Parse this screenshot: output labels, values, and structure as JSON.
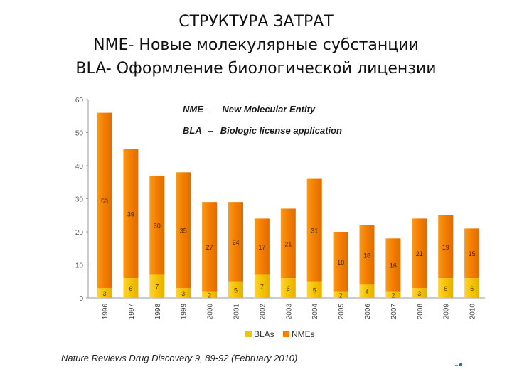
{
  "slide": {
    "title_lines": [
      "СТРУКТУРА ЗАТРАТ",
      "NME- Новые молекулярные субстанции",
      "BLA- Оформление биологической лицензии"
    ],
    "source": "Nature Reviews Drug Discovery 9, 89-92 (February 2010)"
  },
  "chart_data": {
    "type": "bar",
    "stacked": true,
    "categories": [
      "1996",
      "1997",
      "1998",
      "1999",
      "2000",
      "2001",
      "2002",
      "2003",
      "2004",
      "2005",
      "2006",
      "2007",
      "2008",
      "2009",
      "2010"
    ],
    "series": [
      {
        "name": "BLAs",
        "values": [
          3,
          6,
          7,
          3,
          2,
          5,
          7,
          6,
          5,
          2,
          4,
          2,
          3,
          6,
          6
        ],
        "color": "#f5c400"
      },
      {
        "name": "NMEs",
        "values": [
          53,
          39,
          30,
          35,
          27,
          24,
          17,
          21,
          31,
          18,
          18,
          16,
          21,
          19,
          15
        ],
        "color": "#f47f00"
      }
    ],
    "y_ticks": [
      "0",
      "10",
      "20",
      "30",
      "40",
      "50",
      "60"
    ],
    "ylim": [
      0,
      60
    ],
    "annotations": [
      {
        "abbr": "NME",
        "sep": "–",
        "text": "New Molecular Entity"
      },
      {
        "abbr": "BLA",
        "sep": "–",
        "text": "Biologic license application"
      }
    ],
    "legend": {
      "position": "bottom",
      "items": [
        "BLAs",
        "NMEs"
      ]
    },
    "grid": false
  }
}
